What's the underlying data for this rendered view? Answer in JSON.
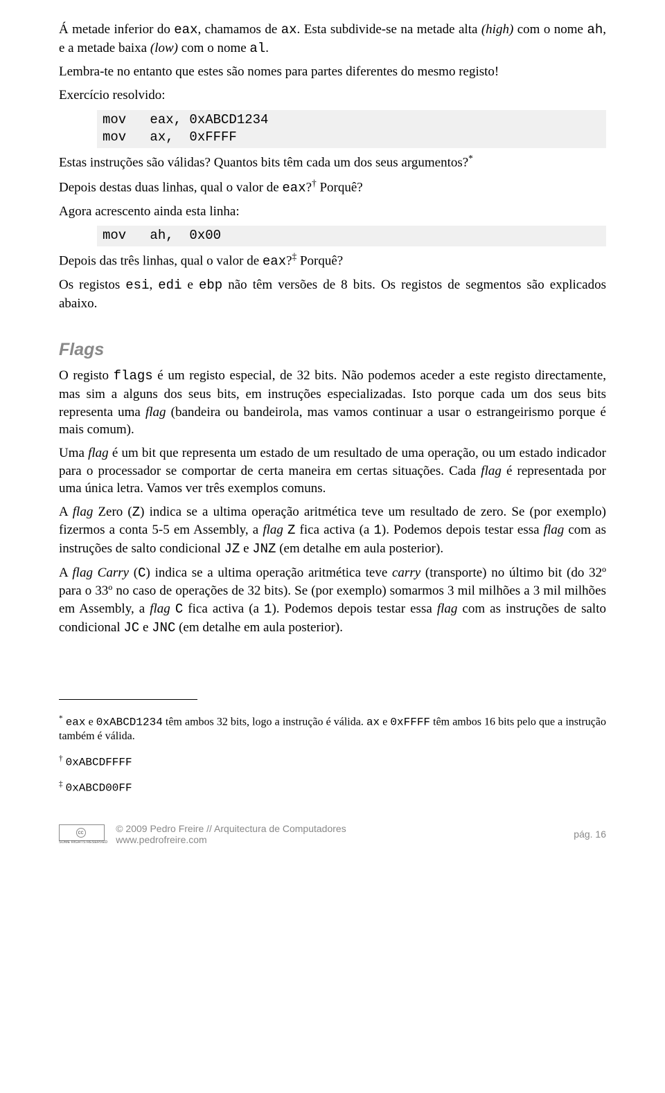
{
  "p1_a": "Á metade inferior do ",
  "p1_b": "eax",
  "p1_c": ", chamamos de ",
  "p1_d": "ax",
  "p1_e": ". Esta subdivide-se na metade alta ",
  "p1_f": "(high)",
  "p1_g": " com o nome ",
  "p1_h": "ah",
  "p1_i": ", e a metade baixa ",
  "p1_j": "(low)",
  "p1_k": " com o nome ",
  "p1_l": "al",
  "p1_m": ".",
  "p2": "Lembra-te no entanto que estes são nomes para partes diferentes do mesmo registo!",
  "p3": "Exercício resolvido:",
  "code1": "mov   eax, 0xABCD1234\nmov   ax,  0xFFFF",
  "p4_a": "Estas instruções são válidas? Quantos bits têm cada um dos seus argumentos?",
  "p4_sup": "*",
  "p5_a": "Depois destas duas linhas, qual o valor de ",
  "p5_b": "eax",
  "p5_c": "?",
  "p5_sup": "†",
  "p5_d": " Porquê?",
  "p6": "Agora acrescento ainda esta linha:",
  "code2": "mov   ah,  0x00",
  "p7_a": "Depois das três linhas, qual o valor de ",
  "p7_b": "eax",
  "p7_c": "?",
  "p7_sup": "‡",
  "p7_d": " Porquê?",
  "p8_a": "Os registos ",
  "p8_b": "esi",
  "p8_c": ", ",
  "p8_d": "edi",
  "p8_e": " e ",
  "p8_f": "ebp",
  "p8_g": " não têm versões de 8 bits. Os registos de segmentos são explicados abaixo.",
  "heading": "Flags",
  "f1_a": "O registo ",
  "f1_b": "flags",
  "f1_c": " é um registo especial, de 32 bits. Não podemos aceder a este registo directamente, mas sim a alguns dos seus bits, em instruções especializadas. Isto porque cada um dos seus bits representa uma ",
  "f1_d": "flag",
  "f1_e": " (bandeira ou bandeirola, mas vamos continuar a usar o estrangeirismo porque é mais comum).",
  "f2_a": "Uma ",
  "f2_b": "flag",
  "f2_c": " é um bit que representa um estado de um resultado de uma operação, ou um estado indicador para o processador se comportar de certa maneira em certas situações. Cada ",
  "f2_d": "flag",
  "f2_e": " é representada por uma única letra. Vamos ver três exemplos comuns.",
  "f3_a": "A ",
  "f3_b": "flag",
  "f3_c": " Zero (",
  "f3_d": "Z",
  "f3_e": ") indica se a ultima operação aritmética teve um resultado de zero. Se (por exemplo) fizermos a conta 5-5 em Assembly, a ",
  "f3_f": "flag",
  "f3_g": " ",
  "f3_h": "Z",
  "f3_i": " fica activa (a ",
  "f3_j": "1",
  "f3_k": "). Podemos depois testar essa ",
  "f3_l": "flag",
  "f3_m": " com as instruções de salto condicional ",
  "f3_n": "JZ",
  "f3_o": " e ",
  "f3_p": "JNZ",
  "f3_q": " (em detalhe em aula posterior).",
  "f4_a": "A ",
  "f4_b": "flag Carry",
  "f4_c": " (",
  "f4_d": "C",
  "f4_e": ") indica se a ultima operação aritmética teve ",
  "f4_f": "carry",
  "f4_g": " (transporte) no último bit (do 32º para o 33º no caso de operações de 32 bits). Se (por exemplo) somarmos 3 mil milhões a 3 mil milhões em Assembly, a ",
  "f4_h": "flag",
  "f4_i": " ",
  "f4_j": "C",
  "f4_k": " fica activa (a ",
  "f4_l": "1",
  "f4_m": "). Podemos depois testar essa ",
  "f4_n": "flag",
  "f4_o": " com as instruções de salto condicional ",
  "f4_p": "JC",
  "f4_q": " e ",
  "f4_r": "JNC",
  "f4_s": " (em detalhe em aula posterior).",
  "fn1_sup": "*",
  "fn1_a": " ",
  "fn1_b": "eax",
  "fn1_c": " e ",
  "fn1_d": "0xABCD1234",
  "fn1_e": " têm ambos 32 bits, logo a instrução é válida. ",
  "fn1_f": "ax",
  "fn1_g": " e ",
  "fn1_h": "0xFFFF",
  "fn1_i": " têm ambos 16 bits pelo que a instrução também é válida.",
  "fn2_sup": "†",
  "fn2_a": " ",
  "fn2_b": "0xABCDFFFF",
  "fn3_sup": "‡",
  "fn3_a": " ",
  "fn3_b": "0xABCD00FF",
  "footer_text": "© 2009 Pedro Freire  //  Arquitectura de Computadores",
  "footer_url": "www.pedrofreire.com",
  "footer_page": "pág. 16",
  "cc_label": "cc",
  "cc_rights": "SOME RIGHTS RESERVED"
}
